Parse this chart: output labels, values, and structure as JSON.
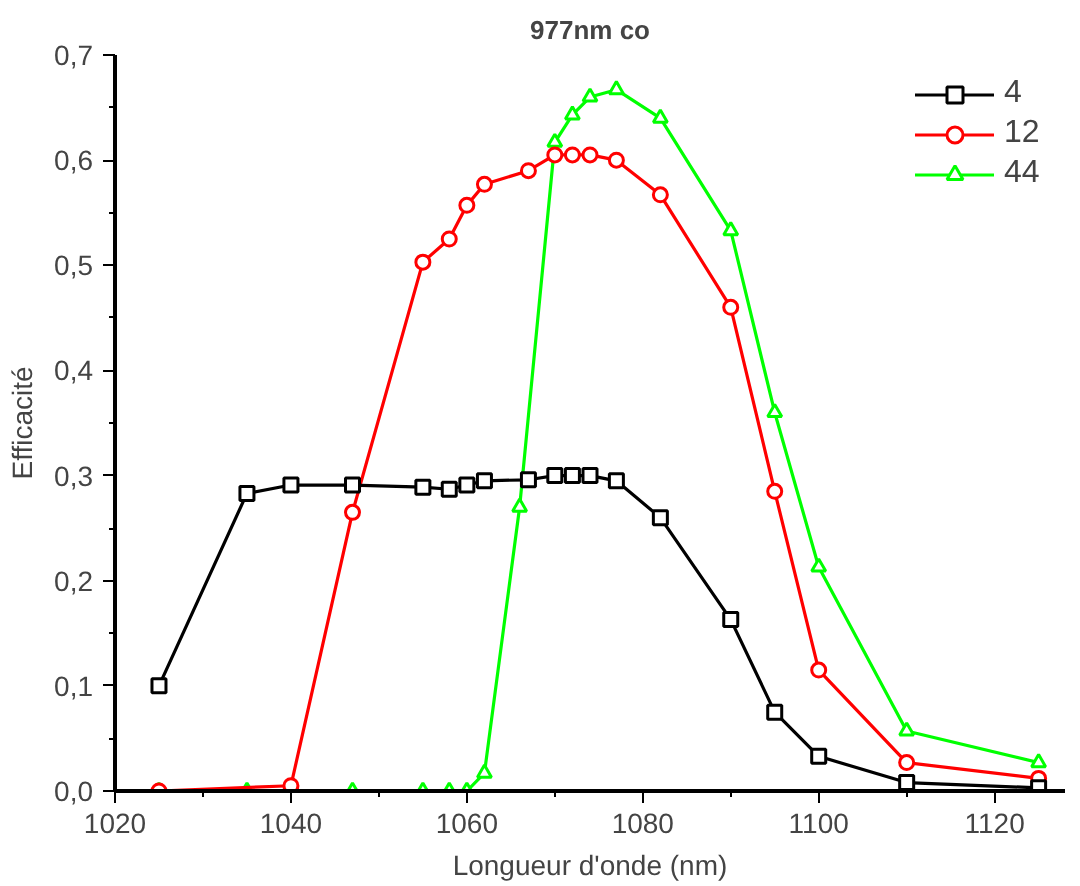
{
  "chart_data": {
    "type": "line",
    "title": "977nm co",
    "xlabel": "Longueur d'onde (nm)",
    "ylabel": "Efficacité",
    "xlim": [
      1020,
      1128
    ],
    "xticks": [
      1020,
      1040,
      1060,
      1080,
      1100,
      1120
    ],
    "ylim": [
      0,
      0.7
    ],
    "yticks": [
      {
        "value": 0,
        "label": "0,0"
      },
      {
        "value": 0.1,
        "label": "0,1"
      },
      {
        "value": 0.2,
        "label": "0,2"
      },
      {
        "value": 0.3,
        "label": "0,3"
      },
      {
        "value": 0.4,
        "label": "0,4"
      },
      {
        "value": 0.5,
        "label": "0,5"
      },
      {
        "value": 0.6,
        "label": "0,6"
      },
      {
        "value": 0.7,
        "label": "0,7"
      }
    ],
    "grid": false,
    "legend": "top right",
    "series": [
      {
        "name": "4",
        "color": "#000000",
        "marker": "square",
        "x": [
          1025,
          1035,
          1040,
          1047,
          1055,
          1058,
          1060,
          1062,
          1067,
          1070,
          1072,
          1074,
          1077,
          1082,
          1090,
          1095,
          1100,
          1110,
          1125
        ],
        "values": [
          0.1,
          0.283,
          0.291,
          0.291,
          0.289,
          0.287,
          0.291,
          0.295,
          0.296,
          0.3,
          0.3,
          0.3,
          0.295,
          0.26,
          0.163,
          0.075,
          0.033,
          0.008,
          0.003
        ]
      },
      {
        "name": "12",
        "color": "#ff0000",
        "marker": "circle",
        "x": [
          1025,
          1040,
          1047,
          1055,
          1058,
          1060,
          1062,
          1067,
          1070,
          1072,
          1074,
          1077,
          1082,
          1090,
          1095,
          1100,
          1110,
          1125
        ],
        "values": [
          0,
          0.005,
          0.265,
          0.503,
          0.525,
          0.557,
          0.577,
          0.59,
          0.605,
          0.605,
          0.605,
          0.6,
          0.567,
          0.46,
          0.285,
          0.115,
          0.027,
          0.012
        ]
      },
      {
        "name": "44",
        "color": "#00ff00",
        "marker": "triangle",
        "x": [
          1025,
          1035,
          1040,
          1047,
          1055,
          1058,
          1060,
          1062,
          1066,
          1070,
          1072,
          1074,
          1077,
          1082,
          1090,
          1095,
          1100,
          1110,
          1125
        ],
        "values": [
          0,
          0,
          0,
          0,
          0,
          0,
          0,
          0.017,
          0.27,
          0.617,
          0.643,
          0.66,
          0.667,
          0.64,
          0.533,
          0.36,
          0.213,
          0.057,
          0.027
        ]
      }
    ]
  }
}
